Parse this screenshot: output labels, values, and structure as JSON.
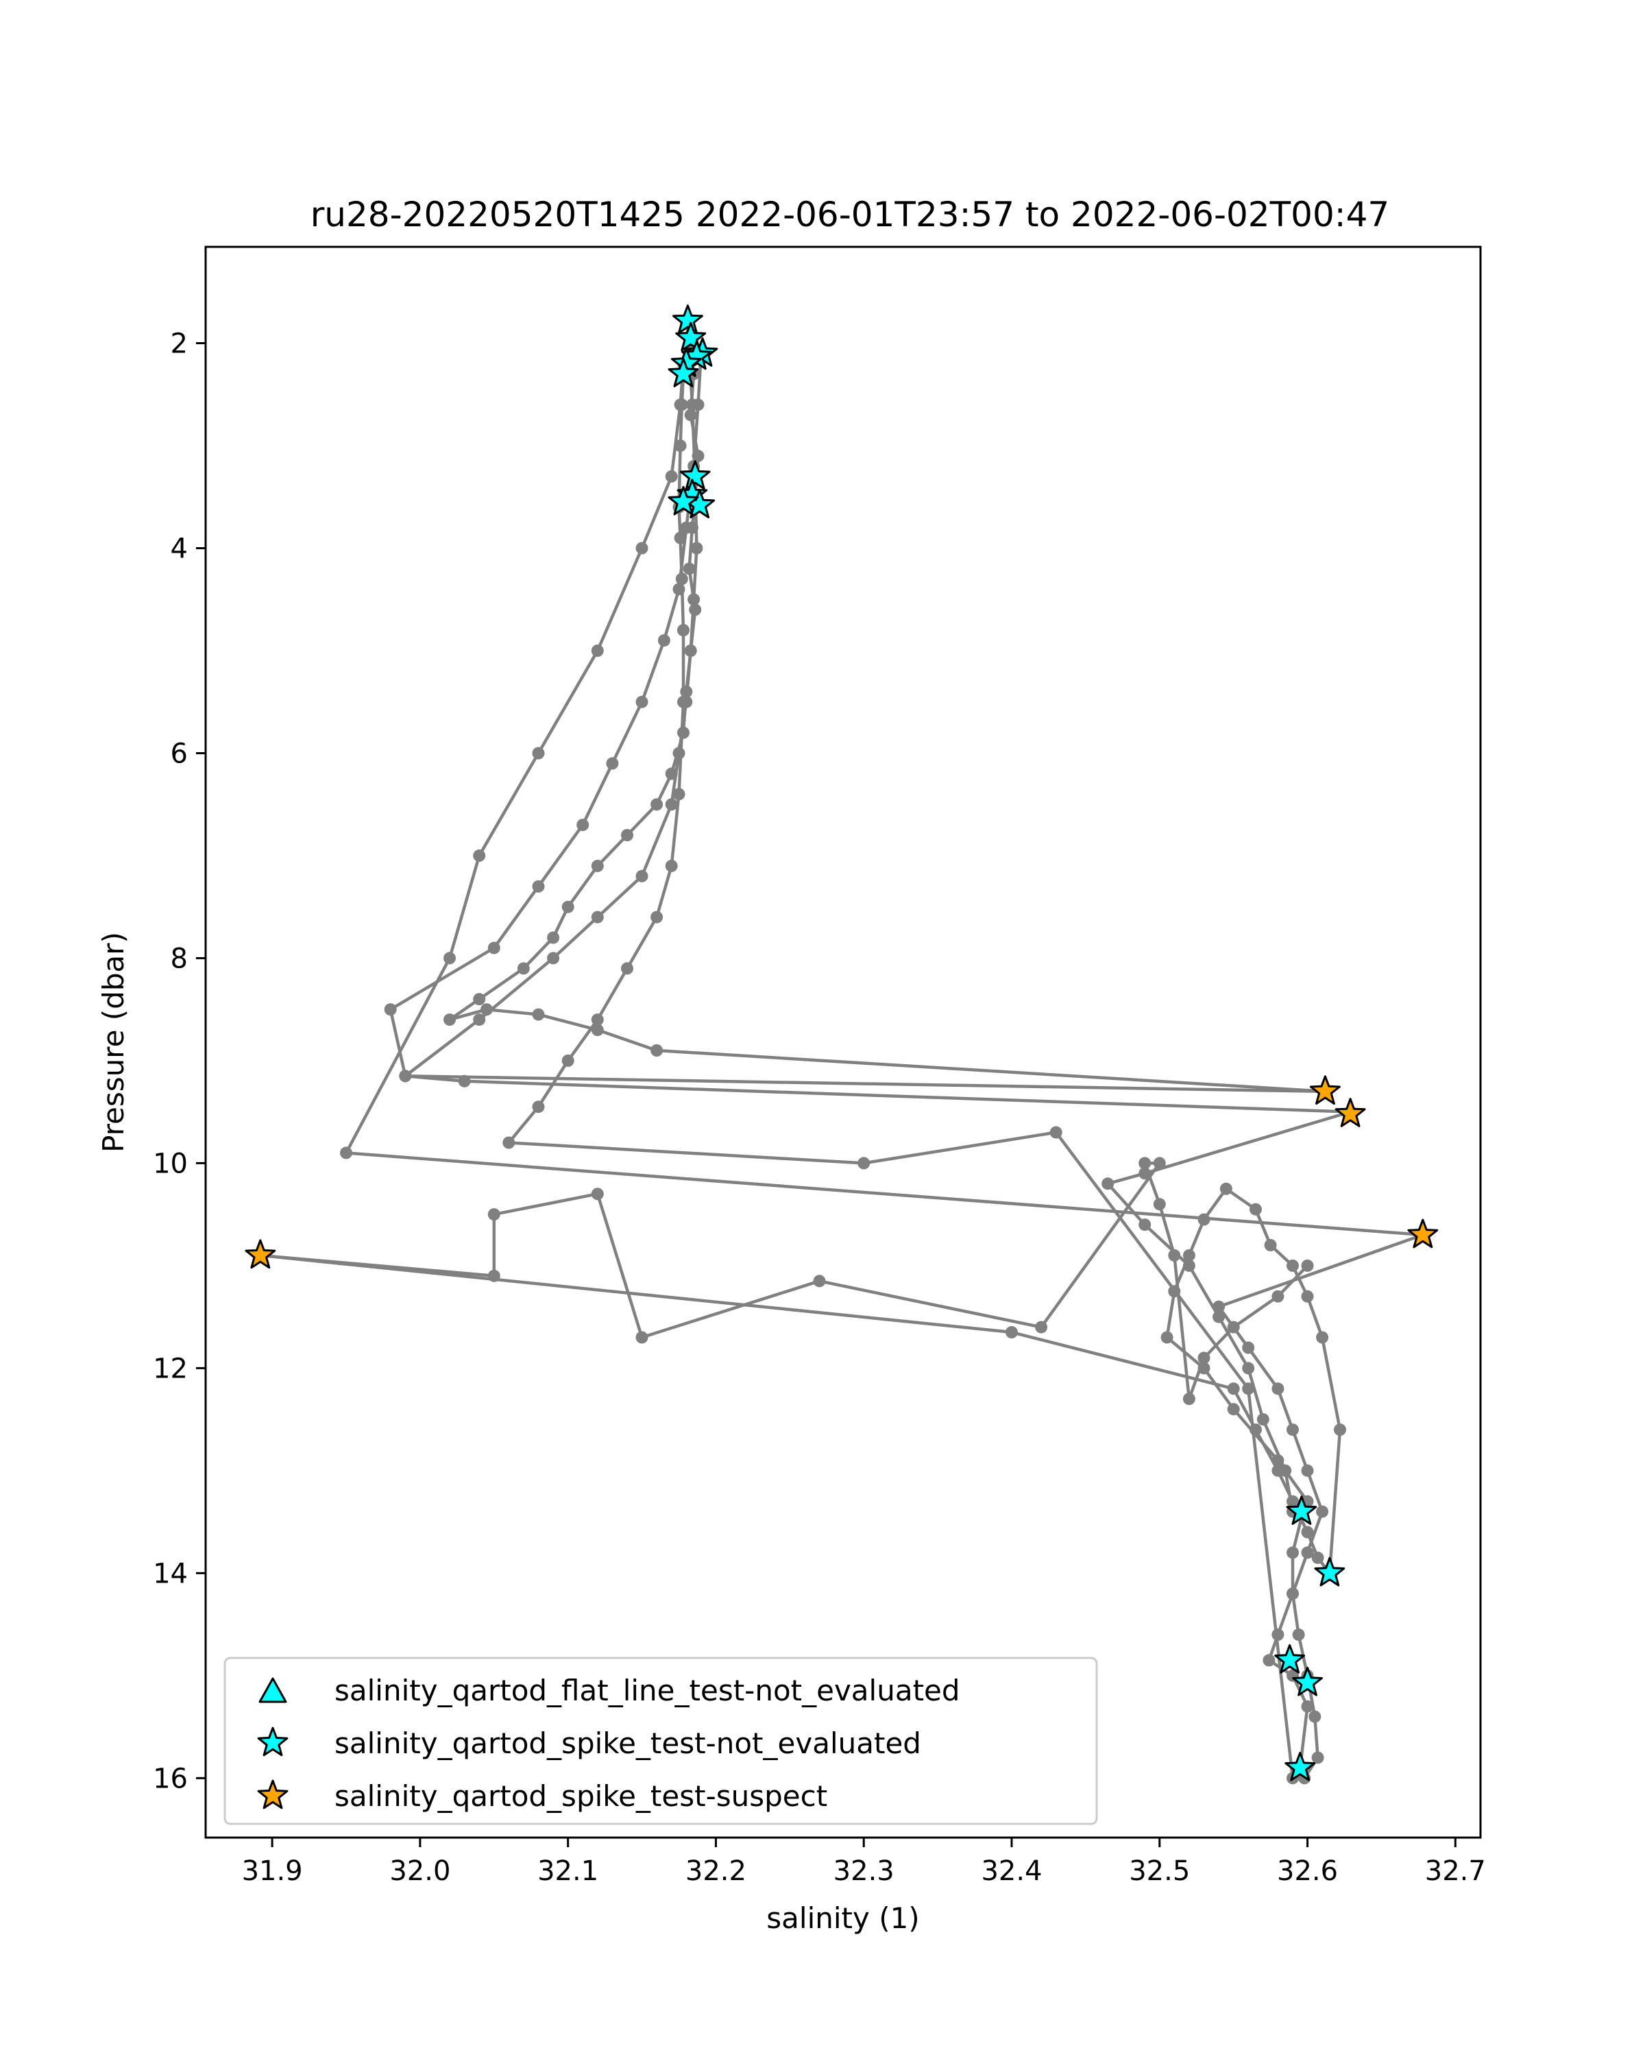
{
  "chart_data": {
    "type": "line",
    "title": "ru28-20220520T1425 2022-06-01T23:57 to 2022-06-02T00:47",
    "xlabel": "salinity (1)",
    "ylabel": "Pressure (dbar)",
    "xlim": [
      31.855,
      32.717
    ],
    "ylim": [
      16.58,
      1.06
    ],
    "y_inverted": true,
    "grid": false,
    "legend_position": "lower-left",
    "xticks": [
      31.9,
      32.0,
      32.1,
      32.2,
      32.3,
      32.4,
      32.5,
      32.6,
      32.7
    ],
    "xtick_labels": [
      "31.9",
      "32.0",
      "32.1",
      "32.2",
      "32.3",
      "32.4",
      "32.5",
      "32.6",
      "32.7"
    ],
    "yticks": [
      2,
      4,
      6,
      8,
      10,
      12,
      14,
      16
    ],
    "ytick_labels": [
      "2",
      "4",
      "6",
      "8",
      "10",
      "12",
      "14",
      "16"
    ],
    "colors": {
      "profile_line": "#808080",
      "not_evaluated": "#00ffff",
      "suspect": "#ffa500",
      "edge": "#000000"
    },
    "series": [
      {
        "x": [
          32.18,
          32.182,
          32.185,
          32.183,
          32.188,
          32.186,
          32.184,
          32.182,
          32.186,
          32.183,
          32.18,
          32.178,
          32.17,
          32.16,
          32.14,
          32.12,
          32.1,
          32.09,
          32.07,
          32.04,
          32.02,
          32.045,
          32.08,
          32.12,
          32.16,
          32.612
        ],
        "y": [
          1.8,
          2.0,
          2.3,
          2.7,
          3.1,
          3.5,
          3.8,
          4.2,
          4.6,
          5.0,
          5.4,
          5.8,
          6.2,
          6.5,
          6.8,
          7.1,
          7.5,
          7.8,
          8.1,
          8.4,
          8.6,
          8.5,
          8.55,
          8.7,
          8.9,
          9.3
        ]
      },
      {
        "x": [
          32.612,
          31.99,
          32.04,
          32.09,
          32.12,
          32.15,
          32.17,
          32.175,
          32.18,
          32.183,
          32.185,
          32.187,
          32.186,
          32.184,
          32.182
        ],
        "y": [
          9.3,
          9.15,
          8.6,
          8.0,
          7.6,
          7.2,
          6.5,
          6.0,
          5.5,
          5.0,
          4.5,
          4.0,
          3.3,
          2.6,
          2.1
        ]
      },
      {
        "x": [
          32.19,
          32.188,
          32.185,
          32.18,
          32.175,
          32.165,
          32.15,
          32.13,
          32.11,
          32.08,
          32.05,
          31.98,
          31.99,
          32.03,
          32.629,
          32.49,
          32.465,
          32.49,
          32.52,
          32.54,
          32.56,
          32.57,
          32.585,
          32.59
        ],
        "y": [
          2.1,
          2.6,
          3.2,
          3.8,
          4.4,
          4.9,
          5.5,
          6.1,
          6.7,
          7.3,
          7.9,
          8.5,
          9.15,
          9.2,
          9.5,
          10.1,
          10.2,
          10.6,
          11.0,
          11.5,
          12.0,
          12.5,
          13.0,
          13.4
        ]
      },
      {
        "x": [
          32.597,
          32.59,
          32.59,
          32.594,
          32.6,
          32.605,
          32.607,
          32.598,
          32.59,
          32.56,
          32.43,
          32.3,
          32.06,
          32.08,
          32.1,
          32.12,
          32.14,
          32.16,
          32.17,
          32.175,
          32.178,
          32.178
        ],
        "y": [
          13.4,
          13.8,
          14.2,
          14.6,
          15.0,
          15.4,
          15.8,
          16.0,
          16.0,
          12.2,
          9.7,
          10.0,
          9.8,
          9.45,
          9.0,
          8.6,
          8.1,
          7.6,
          7.1,
          6.4,
          5.5,
          4.8
        ]
      },
      {
        "x": [
          32.178,
          32.177,
          32.176,
          32.175,
          32.176,
          32.177,
          32.178,
          32.178,
          32.176,
          32.17,
          32.15,
          32.12,
          32.08,
          32.04,
          32.02,
          31.95,
          32.678
        ],
        "y": [
          4.8,
          4.3,
          3.9,
          3.6,
          3.0,
          2.6,
          2.3,
          2.2,
          2.6,
          3.3,
          4.0,
          5.0,
          6.0,
          7.0,
          8.0,
          9.9,
          10.7
        ]
      },
      {
        "x": [
          32.678,
          32.54,
          32.56,
          32.58,
          32.59,
          32.6,
          32.61,
          32.6,
          32.59,
          32.58,
          32.574,
          32.59,
          32.6,
          32.595
        ],
        "y": [
          10.7,
          11.4,
          11.8,
          12.2,
          12.6,
          13.0,
          13.4,
          13.8,
          14.2,
          14.6,
          14.85,
          15.0,
          15.3,
          15.9
        ]
      },
      {
        "x": [
          32.6,
          32.58,
          32.55,
          32.53,
          32.52,
          32.51,
          32.5,
          32.49,
          32.5,
          32.42,
          32.27,
          32.15,
          32.12,
          32.05,
          32.05,
          31.892,
          32.4,
          32.55,
          32.565,
          32.58,
          32.59,
          32.6,
          32.607,
          32.615
        ],
        "y": [
          11.0,
          11.3,
          11.6,
          11.9,
          12.3,
          10.9,
          10.4,
          10.0,
          10.0,
          11.6,
          11.15,
          11.7,
          10.3,
          10.5,
          11.1,
          10.9,
          11.65,
          12.2,
          12.6,
          13.0,
          13.3,
          13.6,
          13.85,
          14.0
        ]
      },
      {
        "x": [
          32.615,
          32.622,
          32.61,
          32.6,
          32.59,
          32.575,
          32.565,
          32.545,
          32.53,
          32.52,
          32.51,
          32.505,
          32.53,
          32.55,
          32.58,
          32.6
        ],
        "y": [
          14.0,
          12.6,
          11.7,
          11.3,
          11.0,
          10.8,
          10.45,
          10.25,
          10.55,
          10.9,
          11.25,
          11.7,
          12.0,
          12.4,
          12.9,
          13.3
        ]
      }
    ],
    "flag_markers": [
      {
        "name": "salinity_qartod_spike_test-not_evaluated",
        "marker": "star",
        "color": "#00ffff",
        "points": [
          [
            32.181,
            1.78
          ],
          [
            32.183,
            1.95
          ],
          [
            32.191,
            2.1
          ],
          [
            32.187,
            2.13
          ],
          [
            32.18,
            2.2
          ],
          [
            32.178,
            2.3
          ],
          [
            32.186,
            3.3
          ],
          [
            32.184,
            3.48
          ],
          [
            32.189,
            3.58
          ],
          [
            32.178,
            3.55
          ],
          [
            32.596,
            13.4
          ],
          [
            32.615,
            14.0
          ],
          [
            32.588,
            14.85
          ],
          [
            32.6,
            15.07
          ],
          [
            32.595,
            15.9
          ]
        ]
      },
      {
        "name": "salinity_qartod_spike_test-suspect",
        "marker": "star",
        "color": "#ffa500",
        "points": [
          [
            32.612,
            9.3
          ],
          [
            32.629,
            9.52
          ],
          [
            32.678,
            10.7
          ],
          [
            31.892,
            10.9
          ]
        ]
      }
    ],
    "legend": [
      {
        "label": "salinity_qartod_flat_line_test-not_evaluated",
        "marker": "triangle",
        "color": "#00ffff"
      },
      {
        "label": "salinity_qartod_spike_test-not_evaluated",
        "marker": "star",
        "color": "#00ffff"
      },
      {
        "label": "salinity_qartod_spike_test-suspect",
        "marker": "star",
        "color": "#ffa500"
      }
    ]
  }
}
